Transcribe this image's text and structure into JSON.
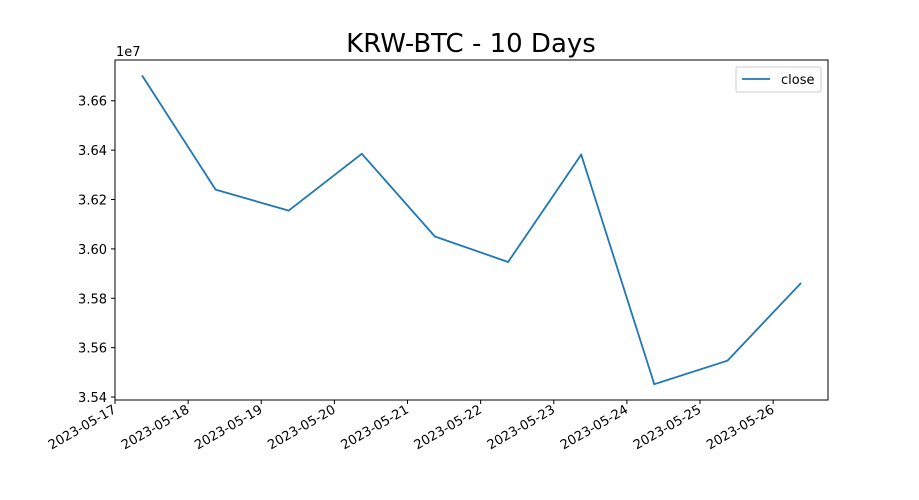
{
  "chart_data": {
    "type": "line",
    "title": "KRW-BTC - 10 Days",
    "xlabel": "",
    "ylabel": "",
    "y_offset_label": "1e7",
    "x": [
      "2023-05-17 09:00",
      "2023-05-18 09:00",
      "2023-05-19 09:00",
      "2023-05-20 09:00",
      "2023-05-21 09:00",
      "2023-05-22 09:00",
      "2023-05-23 09:00",
      "2023-05-24 09:00",
      "2023-05-25 09:00",
      "2023-05-26 09:00"
    ],
    "series": [
      {
        "name": "close",
        "color": "#1f77b4",
        "values": [
          36700000,
          36240000,
          36155000,
          36385000,
          36050000,
          35947000,
          36382000,
          35452000,
          35547000,
          35860000
        ]
      }
    ],
    "x_ticks": [
      "2023-05-17",
      "2023-05-18",
      "2023-05-19",
      "2023-05-20",
      "2023-05-21",
      "2023-05-22",
      "2023-05-23",
      "2023-05-24",
      "2023-05-25",
      "2023-05-26"
    ],
    "y_ticks": [
      "3.54",
      "3.56",
      "3.58",
      "3.60",
      "3.62",
      "3.64",
      "3.66"
    ],
    "y_tick_values": [
      35400000,
      35600000,
      35800000,
      36000000,
      36200000,
      36400000,
      36600000
    ],
    "xlim": [
      "2023-05-17 00:00",
      "2023-05-26 18:00"
    ],
    "ylim": [
      35388000,
      36765000
    ],
    "grid": false,
    "legend_position": "top-right"
  }
}
